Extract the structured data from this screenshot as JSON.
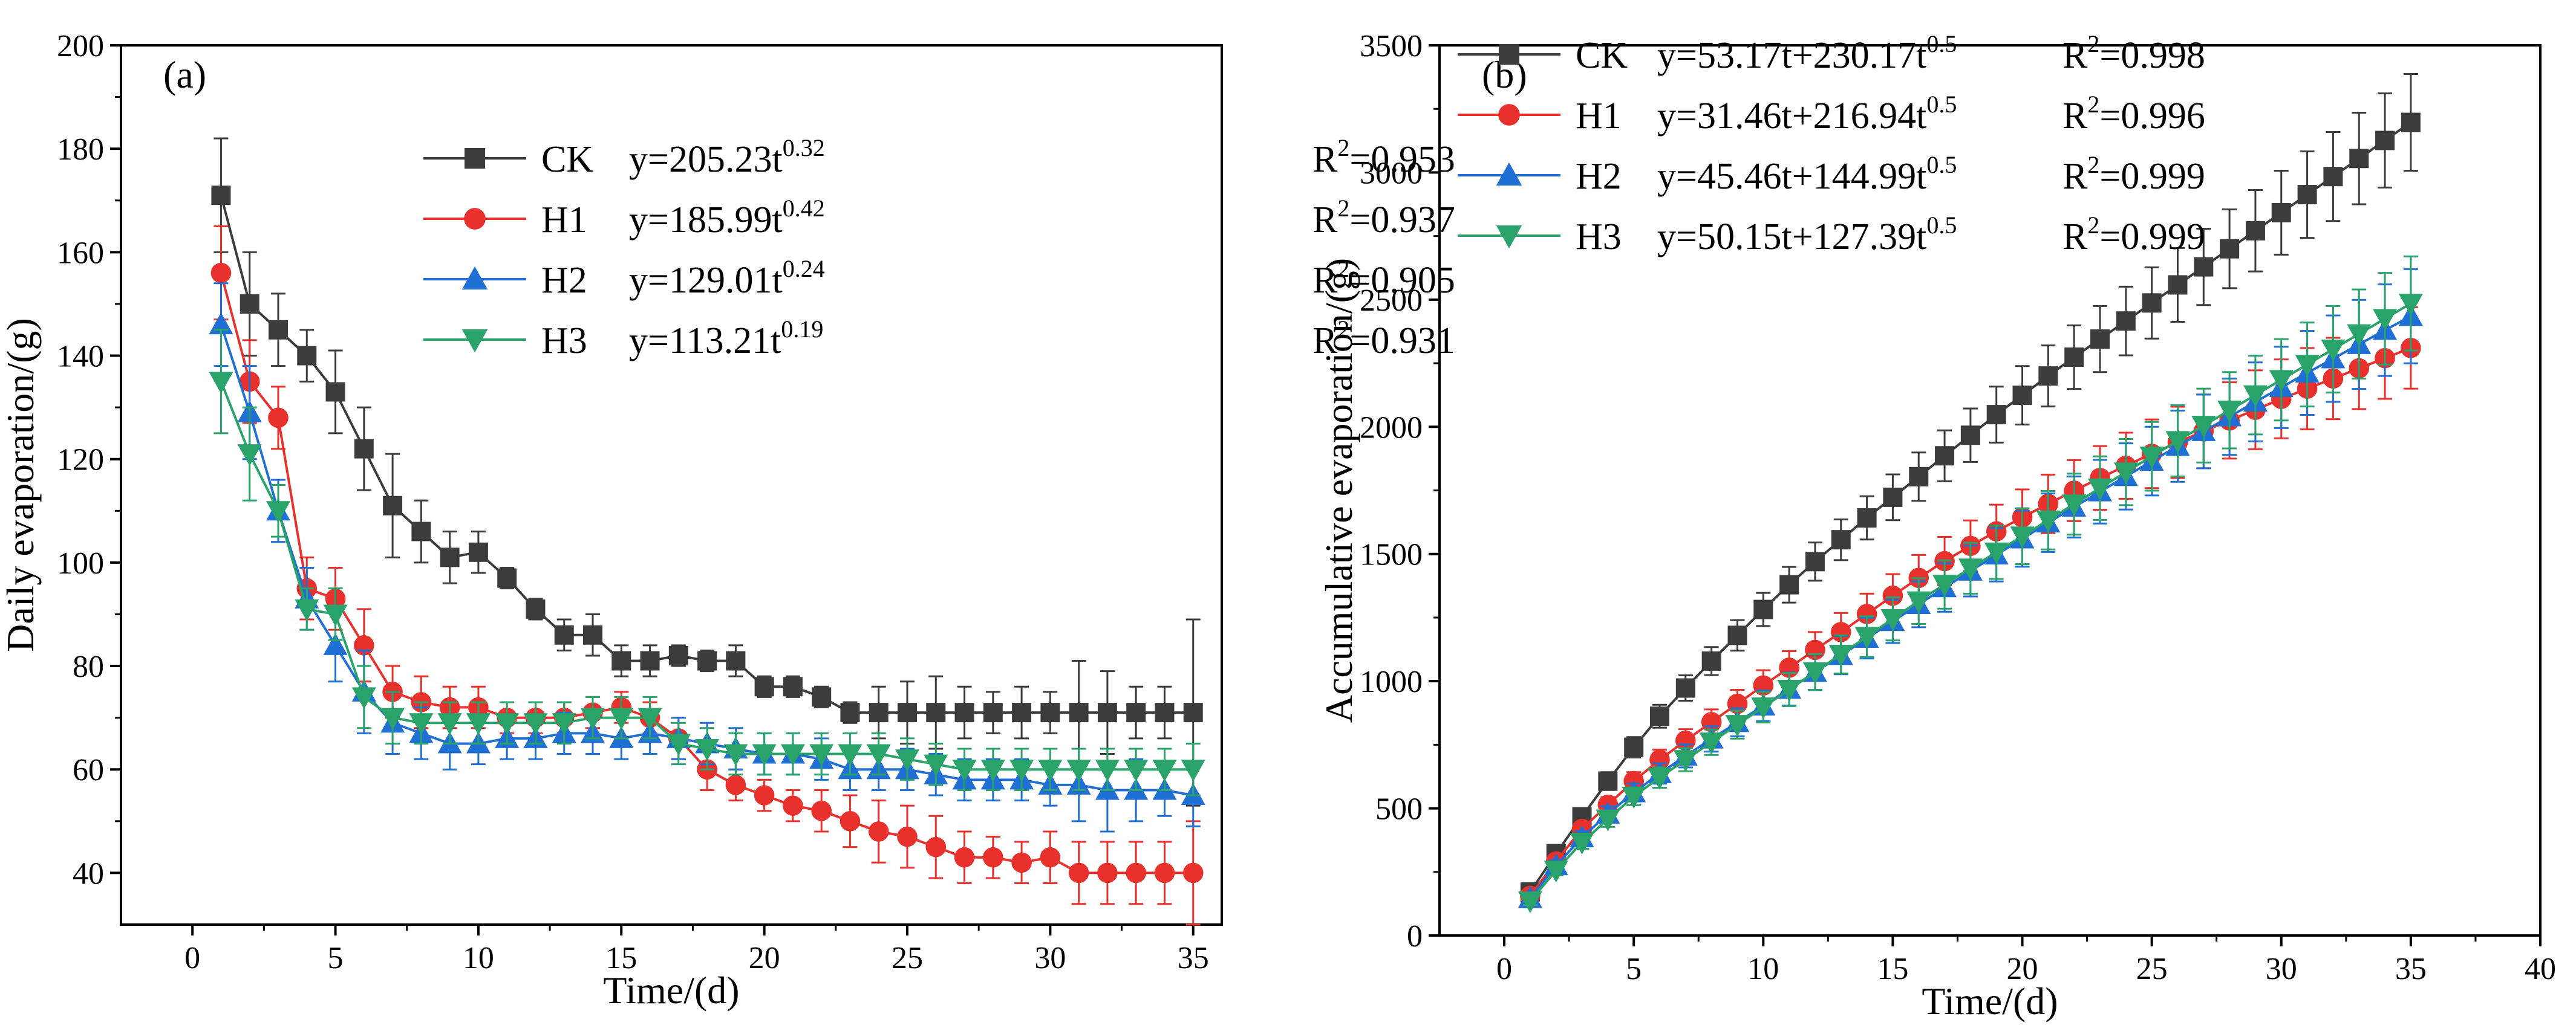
{
  "chart_data": [
    {
      "type": "line",
      "panel": "(a)",
      "xlabel": "Time/(d)",
      "ylabel": "Daily evaporation/(g)",
      "xlim": [
        -2.5,
        36
      ],
      "ylim": [
        30,
        200
      ],
      "xticks": [
        0,
        5,
        10,
        15,
        20,
        25,
        30,
        35
      ],
      "yticks": [
        40,
        60,
        80,
        100,
        120,
        140,
        160,
        180,
        200
      ],
      "legend_position": "top-right",
      "x": [
        1,
        2,
        3,
        4,
        5,
        6,
        7,
        8,
        9,
        10,
        11,
        12,
        13,
        14,
        15,
        16,
        17,
        18,
        19,
        20,
        21,
        22,
        23,
        24,
        25,
        26,
        27,
        28,
        29,
        30,
        31,
        32,
        33,
        34,
        35
      ],
      "series": [
        {
          "name": "CK",
          "color": "#3c3c3c",
          "marker": "square",
          "legend": {
            "label": "CK",
            "eq_main": "y=205.23t",
            "eq_sup": "0.32",
            "r_label": "R",
            "r_sup": "2",
            "r_value": "=0.953"
          },
          "values": [
            171,
            150,
            145,
            140,
            133,
            122,
            111,
            106,
            101,
            102,
            97,
            91,
            86,
            86,
            81,
            81,
            82,
            81,
            81,
            76,
            76,
            74,
            71,
            71,
            71,
            71,
            71,
            71,
            71,
            71,
            71,
            71,
            71,
            71,
            71
          ],
          "errors": [
            11,
            10,
            7,
            5,
            8,
            8,
            10,
            6,
            5,
            4,
            2,
            2,
            3,
            4,
            3,
            3,
            2,
            2,
            3,
            2,
            2,
            2,
            2,
            5,
            6,
            7,
            5,
            4,
            5,
            4,
            10,
            8,
            5,
            5,
            18
          ]
        },
        {
          "name": "H1",
          "color": "#e8302c",
          "marker": "circle",
          "legend": {
            "label": "H1",
            "eq_main": "y=185.99t",
            "eq_sup": "0.42",
            "r_label": "R",
            "r_sup": "2",
            "r_value": "=0.937"
          },
          "values": [
            156,
            135,
            128,
            95,
            93,
            84,
            75,
            73,
            72,
            72,
            70,
            70,
            70,
            71,
            72,
            70,
            66,
            60,
            57,
            55,
            53,
            52,
            50,
            48,
            47,
            45,
            43,
            43,
            42,
            43,
            40,
            40,
            40,
            40,
            40
          ],
          "errors": [
            9,
            8,
            6,
            6,
            6,
            7,
            5,
            5,
            4,
            4,
            3,
            3,
            3,
            3,
            3,
            3,
            4,
            4,
            3,
            3,
            3,
            4,
            5,
            6,
            6,
            6,
            5,
            4,
            4,
            5,
            6,
            6,
            6,
            6,
            10
          ]
        },
        {
          "name": "H2",
          "color": "#1f6fd4",
          "marker": "triangle-up",
          "legend": {
            "label": "H2",
            "eq_main": "y=129.01t",
            "eq_sup": "0.24",
            "r_label": "R",
            "r_sup": "2",
            "r_value": "=0.905"
          },
          "values": [
            146,
            129,
            110,
            93,
            84,
            75,
            69,
            67,
            65,
            65,
            66,
            66,
            67,
            67,
            66,
            67,
            66,
            65,
            64,
            63,
            63,
            62,
            60,
            60,
            60,
            59,
            58,
            58,
            58,
            57,
            57,
            56,
            56,
            56,
            55
          ],
          "errors": [
            8,
            9,
            6,
            6,
            7,
            8,
            6,
            5,
            5,
            4,
            4,
            4,
            4,
            4,
            4,
            4,
            4,
            4,
            4,
            4,
            4,
            4,
            4,
            4,
            4,
            4,
            4,
            4,
            4,
            4,
            7,
            8,
            6,
            5,
            6
          ]
        },
        {
          "name": "H3",
          "color": "#2aa36b",
          "marker": "triangle-down",
          "legend": {
            "label": "H3",
            "eq_main": "y=113.21t",
            "eq_sup": "0.19",
            "r_label": "R",
            "r_sup": "2",
            "r_value": "=0.931"
          },
          "values": [
            135,
            121,
            110,
            91,
            90,
            74,
            70,
            69,
            69,
            69,
            69,
            69,
            69,
            70,
            70,
            70,
            65,
            64,
            63,
            63,
            63,
            63,
            63,
            63,
            62,
            61,
            60,
            60,
            60,
            60,
            60,
            60,
            60,
            60,
            60
          ],
          "errors": [
            10,
            9,
            5,
            4,
            5,
            6,
            5,
            4,
            4,
            4,
            4,
            4,
            4,
            4,
            4,
            4,
            4,
            4,
            4,
            4,
            4,
            4,
            4,
            4,
            4,
            4,
            4,
            4,
            4,
            4,
            4,
            4,
            4,
            4,
            5
          ]
        }
      ]
    },
    {
      "type": "line",
      "panel": "(b)",
      "xlabel": "Time/(d)",
      "ylabel": "Accumulative evaporation/(g)",
      "xlim": [
        -2.5,
        40
      ],
      "ylim": [
        0,
        3500
      ],
      "xticks": [
        0,
        5,
        10,
        15,
        20,
        25,
        30,
        35,
        40
      ],
      "yticks": [
        0,
        500,
        1000,
        1500,
        2000,
        2500,
        3000,
        3500
      ],
      "legend_position": "top-left",
      "x": [
        1,
        2,
        3,
        4,
        5,
        6,
        7,
        8,
        9,
        10,
        11,
        12,
        13,
        14,
        15,
        16,
        17,
        18,
        19,
        20,
        21,
        22,
        23,
        24,
        25,
        26,
        27,
        28,
        29,
        30,
        31,
        32,
        33,
        34,
        35
      ],
      "series": [
        {
          "name": "CK",
          "color": "#3c3c3c",
          "marker": "square",
          "legend": {
            "label": "CK",
            "eq_main": "y=53.17t+230.17t",
            "eq_sup": "0.5",
            "r_label": "R",
            "r_sup": "2",
            "r_value": "=0.998"
          },
          "values": [
            171,
            322,
            467,
            607,
            740,
            862,
            973,
            1079,
            1180,
            1282,
            1379,
            1470,
            1556,
            1642,
            1723,
            1804,
            1886,
            1967,
            2048,
            2124,
            2200,
            2274,
            2345,
            2416,
            2487,
            2558,
            2629,
            2700,
            2771,
            2842,
            2913,
            2984,
            3055,
            3126,
            3197
          ],
          "errors": [
            20,
            25,
            30,
            35,
            40,
            45,
            50,
            55,
            60,
            65,
            70,
            75,
            80,
            85,
            90,
            95,
            100,
            105,
            110,
            115,
            120,
            125,
            130,
            135,
            140,
            145,
            150,
            155,
            160,
            165,
            170,
            175,
            180,
            185,
            190
          ]
        },
        {
          "name": "H1",
          "color": "#e8302c",
          "marker": "circle",
          "legend": {
            "label": "H1",
            "eq_main": "y=31.46t+216.94t",
            "eq_sup": "0.5",
            "r_label": "R",
            "r_sup": "2",
            "r_value": "=0.996"
          },
          "values": [
            156,
            291,
            419,
            514,
            607,
            691,
            766,
            839,
            911,
            983,
            1053,
            1123,
            1193,
            1264,
            1336,
            1406,
            1472,
            1532,
            1589,
            1644,
            1697,
            1749,
            1799,
            1847,
            1894,
            1939,
            1982,
            2025,
            2067,
            2110,
            2150,
            2190,
            2230,
            2270,
            2310
          ],
          "errors": [
            15,
            20,
            25,
            30,
            35,
            40,
            45,
            50,
            55,
            60,
            65,
            70,
            75,
            80,
            85,
            90,
            95,
            100,
            105,
            110,
            115,
            120,
            125,
            130,
            135,
            140,
            145,
            150,
            155,
            155,
            160,
            160,
            160,
            160,
            160
          ]
        },
        {
          "name": "H2",
          "color": "#1f6fd4",
          "marker": "triangle-up",
          "legend": {
            "label": "H2",
            "eq_main": "y=45.46t+144.99t",
            "eq_sup": "0.5",
            "r_label": "R",
            "r_sup": "2",
            "r_value": "=0.999"
          },
          "values": [
            146,
            275,
            385,
            478,
            562,
            637,
            706,
            773,
            838,
            903,
            969,
            1035,
            1102,
            1169,
            1235,
            1302,
            1368,
            1433,
            1497,
            1560,
            1623,
            1685,
            1745,
            1805,
            1865,
            1924,
            1982,
            2040,
            2098,
            2155,
            2212,
            2268,
            2324,
            2380,
            2435
          ],
          "errors": [
            15,
            20,
            25,
            30,
            35,
            40,
            45,
            50,
            55,
            60,
            65,
            70,
            75,
            80,
            85,
            90,
            95,
            100,
            105,
            110,
            115,
            120,
            125,
            130,
            135,
            140,
            145,
            150,
            155,
            160,
            165,
            170,
            175,
            180,
            185
          ]
        },
        {
          "name": "H3",
          "color": "#2aa36b",
          "marker": "triangle-down",
          "legend": {
            "label": "H3",
            "eq_main": "y=50.15t+127.39t",
            "eq_sup": "0.5",
            "r_label": "R",
            "r_sup": "2",
            "r_value": "=0.999"
          },
          "values": [
            135,
            256,
            366,
            457,
            547,
            621,
            691,
            760,
            829,
            898,
            967,
            1036,
            1105,
            1175,
            1245,
            1315,
            1380,
            1444,
            1507,
            1570,
            1633,
            1696,
            1759,
            1822,
            1884,
            1945,
            2005,
            2065,
            2125,
            2185,
            2245,
            2305,
            2365,
            2425,
            2485
          ],
          "errors": [
            15,
            20,
            25,
            30,
            35,
            40,
            45,
            50,
            55,
            60,
            65,
            70,
            75,
            80,
            85,
            90,
            95,
            100,
            105,
            110,
            115,
            120,
            125,
            130,
            135,
            140,
            145,
            150,
            155,
            160,
            165,
            170,
            175,
            180,
            185
          ]
        }
      ]
    }
  ]
}
